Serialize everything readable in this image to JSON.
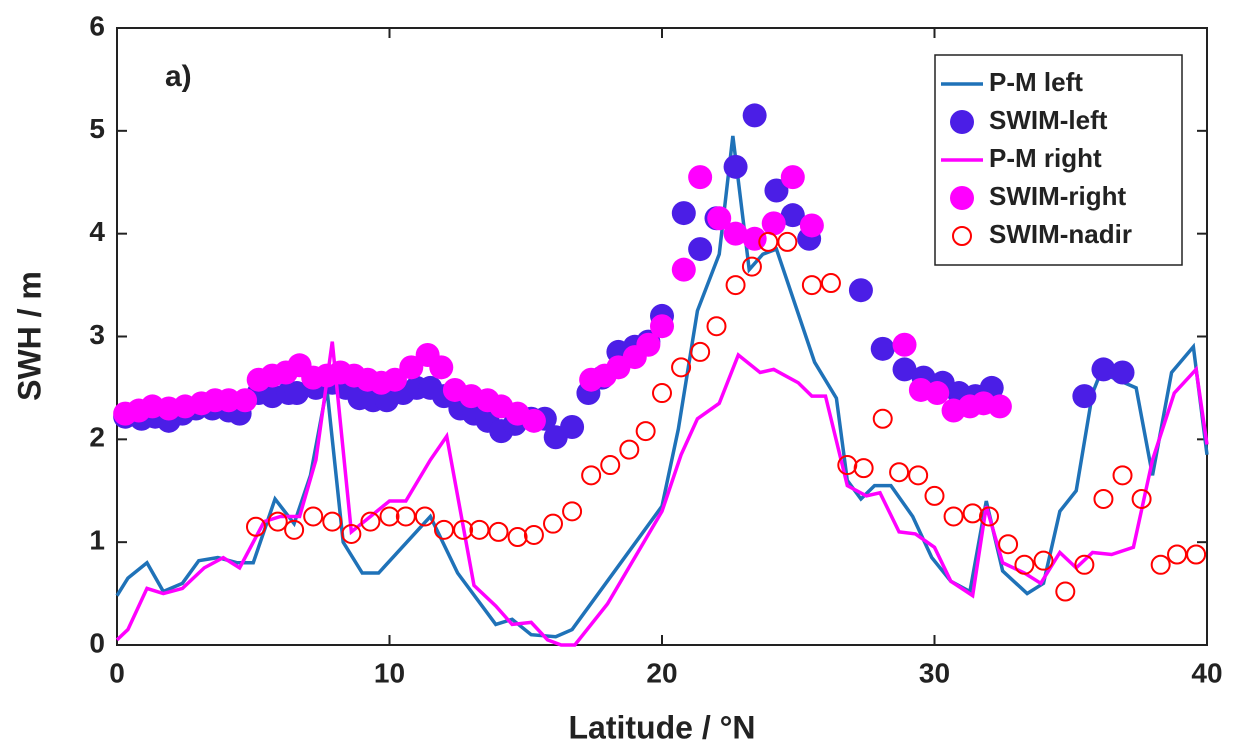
{
  "chart_data": {
    "type": "line",
    "annotation": "a)",
    "xlabel": "Latitude / °N",
    "ylabel": "SWH / m",
    "xlim": [
      0,
      40
    ],
    "xticks": [
      0,
      10,
      20,
      30,
      40
    ],
    "ylim": [
      0,
      6
    ],
    "yticks": [
      0,
      1,
      2,
      3,
      4,
      5,
      6
    ],
    "legend": "upper right",
    "series": [
      {
        "name": "P-M left",
        "color": "#1f72b8",
        "style": "line",
        "x": [
          0,
          0.4,
          1.1,
          1.7,
          2.4,
          3,
          3.7,
          4.4,
          5,
          5.8,
          6.5,
          7.1,
          7.7,
          8.3,
          9,
          9.6,
          11.5,
          12.5,
          13.9,
          14.5,
          15.2,
          16.1,
          16.7,
          20,
          20.6,
          21.3,
          22.1,
          22.6,
          23.2,
          23.7,
          24.2,
          25.6,
          26.4,
          26.8,
          27.3,
          27.8,
          28.4,
          29.2,
          29.9,
          30.6,
          31.3,
          31.9,
          32.5,
          33.4,
          34,
          34.6,
          35.2,
          35.8,
          36.1,
          37.4,
          38,
          38.7,
          39.5,
          40
        ],
        "values": [
          0.48,
          0.65,
          0.8,
          0.52,
          0.6,
          0.82,
          0.85,
          0.8,
          0.8,
          1.42,
          1.18,
          1.65,
          2.5,
          1.0,
          0.7,
          0.7,
          1.25,
          0.7,
          0.2,
          0.25,
          0.1,
          0.08,
          0.15,
          1.35,
          2.1,
          3.25,
          3.8,
          4.95,
          3.65,
          3.8,
          3.85,
          2.75,
          2.4,
          1.6,
          1.42,
          1.55,
          1.55,
          1.25,
          0.85,
          0.62,
          0.52,
          1.4,
          0.72,
          0.5,
          0.6,
          1.3,
          1.5,
          2.45,
          2.65,
          2.5,
          1.65,
          2.65,
          2.9,
          1.85
        ]
      },
      {
        "name": "SWIM-left",
        "color": "#4b1ee6",
        "style": "filled",
        "x": [
          0.3,
          0.9,
          1.4,
          1.9,
          2.4,
          2.9,
          3.5,
          4.1,
          4.5,
          5.2,
          5.7,
          6.3,
          6.6,
          7.3,
          7.9,
          8.4,
          8.9,
          9.4,
          9.9,
          10.5,
          11,
          11.5,
          12,
          12.6,
          13.1,
          13.6,
          14.1,
          14.6,
          15.2,
          15.7,
          16.1,
          16.7,
          17.3,
          17.8,
          18.4,
          19,
          19.5,
          20,
          20.8,
          21.4,
          22,
          22.7,
          23.4,
          24.2,
          24.8,
          25.4,
          27.3,
          28.1,
          28.9,
          29.6,
          30.3,
          30.9,
          31.5,
          32.1,
          35.5,
          36.2,
          36.9
        ],
        "values": [
          2.22,
          2.2,
          2.22,
          2.18,
          2.25,
          2.3,
          2.3,
          2.28,
          2.25,
          2.45,
          2.42,
          2.45,
          2.45,
          2.5,
          2.55,
          2.5,
          2.4,
          2.38,
          2.38,
          2.45,
          2.5,
          2.5,
          2.42,
          2.3,
          2.25,
          2.18,
          2.08,
          2.15,
          2.2,
          2.2,
          2.02,
          2.12,
          2.45,
          2.6,
          2.85,
          2.9,
          2.95,
          3.2,
          4.2,
          3.85,
          4.15,
          4.65,
          5.15,
          4.42,
          4.18,
          3.95,
          3.45,
          2.88,
          2.68,
          2.6,
          2.55,
          2.45,
          2.42,
          2.5,
          2.42,
          2.68,
          2.65
        ]
      },
      {
        "name": "P-M right",
        "color": "#ff00ff",
        "style": "line",
        "x": [
          0,
          0.4,
          1.1,
          1.7,
          2.4,
          3.2,
          3.9,
          4.5,
          5.4,
          6,
          6.7,
          7.3,
          7.9,
          8.6,
          9.3,
          10,
          10.6,
          11.5,
          12.1,
          13.1,
          13.9,
          14.5,
          15.2,
          15.8,
          16.3,
          16.8,
          18,
          20,
          20.7,
          21.3,
          22.1,
          22.8,
          23.6,
          24.1,
          25,
          25.5,
          26,
          26.8,
          27.5,
          28,
          28.7,
          29.3,
          30,
          30.6,
          31.4,
          31.9,
          32.5,
          33.3,
          33.9,
          34.6,
          35.2,
          35.8,
          36.5,
          37.3,
          38,
          38.8,
          39.6,
          40
        ],
        "values": [
          0.05,
          0.15,
          0.55,
          0.5,
          0.55,
          0.75,
          0.85,
          0.75,
          1.2,
          1.25,
          1.25,
          1.8,
          2.95,
          1.1,
          1.25,
          1.4,
          1.4,
          1.8,
          2.03,
          0.58,
          0.38,
          0.2,
          0.22,
          0.05,
          0,
          0,
          0.4,
          1.3,
          1.85,
          2.2,
          2.35,
          2.82,
          2.65,
          2.68,
          2.55,
          2.42,
          2.42,
          1.55,
          1.45,
          1.48,
          1.1,
          1.08,
          0.95,
          0.62,
          0.48,
          1.35,
          0.8,
          0.7,
          0.6,
          0.9,
          0.75,
          0.9,
          0.88,
          0.95,
          1.8,
          2.45,
          2.68,
          1.95
        ]
      },
      {
        "name": "SWIM-right",
        "color": "#ff00ff",
        "style": "filled",
        "x": [
          0.3,
          0.8,
          1.3,
          1.9,
          2.5,
          3.1,
          3.6,
          4.1,
          4.7,
          5.2,
          5.7,
          6.2,
          6.7,
          7.2,
          7.7,
          8.2,
          8.7,
          9.2,
          9.7,
          10.2,
          10.8,
          11.4,
          11.9,
          12.4,
          13,
          13.6,
          14.1,
          14.7,
          15.3,
          17.4,
          17.9,
          18.4,
          19,
          19.5,
          20,
          20.8,
          21.4,
          22.1,
          22.7,
          23.4,
          24.1,
          24.8,
          25.5,
          28.9,
          29.5,
          30.1,
          30.7,
          31.3,
          31.8,
          32.4
        ],
        "values": [
          2.25,
          2.28,
          2.32,
          2.3,
          2.32,
          2.35,
          2.38,
          2.38,
          2.38,
          2.58,
          2.62,
          2.65,
          2.72,
          2.6,
          2.62,
          2.65,
          2.62,
          2.58,
          2.55,
          2.58,
          2.7,
          2.82,
          2.7,
          2.48,
          2.42,
          2.38,
          2.32,
          2.25,
          2.18,
          2.58,
          2.62,
          2.7,
          2.8,
          2.92,
          3.1,
          3.65,
          4.55,
          4.15,
          4.0,
          3.95,
          4.1,
          4.55,
          4.08,
          2.92,
          2.48,
          2.45,
          2.28,
          2.32,
          2.35,
          2.32
        ]
      },
      {
        "name": "SWIM-nadir",
        "color": "#ff0000",
        "style": "open",
        "x": [
          5.1,
          5.9,
          6.5,
          7.2,
          7.9,
          8.6,
          9.3,
          10,
          10.6,
          11.3,
          12,
          12.7,
          13.3,
          14,
          14.7,
          15.3,
          16,
          16.7,
          17.4,
          18.1,
          18.8,
          19.4,
          20,
          20.7,
          21.4,
          22,
          22.7,
          23.3,
          23.9,
          24.6,
          25.5,
          26.2,
          26.8,
          27.4,
          28.1,
          28.7,
          29.4,
          30,
          30.7,
          31.4,
          32,
          32.7,
          33.3,
          34,
          34.8,
          35.5,
          36.2,
          36.9,
          37.6,
          38.3,
          38.9,
          39.6
        ],
        "values": [
          1.15,
          1.2,
          1.12,
          1.25,
          1.2,
          1.08,
          1.2,
          1.25,
          1.25,
          1.25,
          1.12,
          1.12,
          1.12,
          1.1,
          1.05,
          1.07,
          1.18,
          1.3,
          1.65,
          1.75,
          1.9,
          2.08,
          2.45,
          2.7,
          2.85,
          3.1,
          3.5,
          3.68,
          3.92,
          3.92,
          3.5,
          3.52,
          1.75,
          1.72,
          2.2,
          1.68,
          1.65,
          1.45,
          1.25,
          1.28,
          1.25,
          0.98,
          0.78,
          0.82,
          0.52,
          0.78,
          1.42,
          1.65,
          1.42,
          0.78,
          0.88,
          0.88
        ]
      }
    ]
  }
}
